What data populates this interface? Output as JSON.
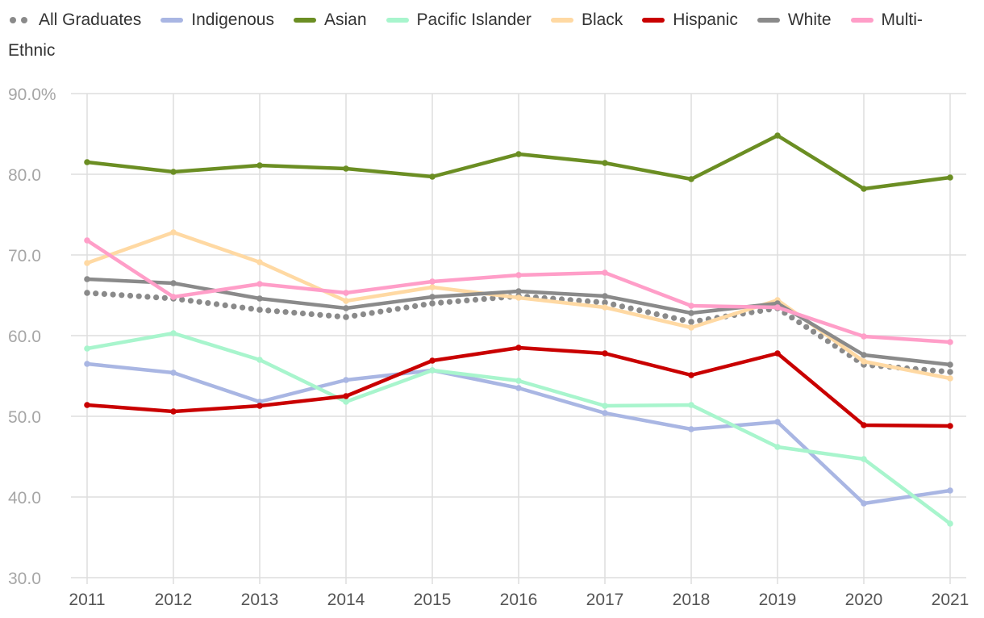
{
  "chart_data": {
    "type": "line",
    "title": "",
    "xlabel": "",
    "ylabel": "",
    "categories": [
      "2011",
      "2012",
      "2013",
      "2014",
      "2015",
      "2016",
      "2017",
      "2018",
      "2019",
      "2020",
      "2021"
    ],
    "ylim": [
      30,
      90
    ],
    "y_ticks": [
      "90.0%",
      "80.0",
      "70.0",
      "60.0",
      "50.0",
      "40.0",
      "30.0"
    ],
    "y_tick_values": [
      90,
      80,
      70,
      60,
      50,
      40,
      30
    ],
    "legend_position": "top",
    "legend_wrap_text": "Ethnic",
    "series": [
      {
        "name": "All Graduates",
        "color": "#8a8a8a",
        "style": "dotted",
        "values": [
          65.3,
          64.6,
          63.2,
          62.3,
          64.0,
          64.9,
          64.1,
          61.7,
          63.4,
          56.4,
          55.5
        ]
      },
      {
        "name": "Indigenous",
        "color": "#a9b6e3",
        "style": "solid",
        "values": [
          56.5,
          55.4,
          51.8,
          54.5,
          55.7,
          53.5,
          50.4,
          48.4,
          49.3,
          39.2,
          40.8
        ]
      },
      {
        "name": "Asian",
        "color": "#6b8e23",
        "style": "solid",
        "values": [
          81.5,
          80.3,
          81.1,
          80.7,
          79.7,
          82.5,
          81.4,
          79.4,
          84.8,
          78.2,
          79.6
        ]
      },
      {
        "name": "Pacific Islander",
        "color": "#a8f5cd",
        "style": "solid",
        "values": [
          58.4,
          60.3,
          57.0,
          51.8,
          55.7,
          54.4,
          51.3,
          51.4,
          46.2,
          44.7,
          36.7
        ]
      },
      {
        "name": "Black",
        "color": "#ffd9a3",
        "style": "solid",
        "values": [
          69.0,
          72.8,
          69.1,
          64.3,
          66.0,
          64.7,
          63.5,
          61.0,
          64.4,
          56.8,
          54.7
        ]
      },
      {
        "name": "Hispanic",
        "color": "#c90000",
        "style": "solid",
        "values": [
          51.4,
          50.6,
          51.3,
          52.5,
          56.9,
          58.5,
          57.8,
          55.1,
          57.8,
          48.9,
          48.8
        ]
      },
      {
        "name": "White",
        "color": "#8a8a8a",
        "style": "solid",
        "values": [
          67.0,
          66.5,
          64.6,
          63.4,
          64.8,
          65.5,
          64.9,
          62.8,
          64.0,
          57.6,
          56.4
        ]
      },
      {
        "name": "Multi-",
        "color": "#ff9ec8",
        "style": "solid",
        "values": [
          71.8,
          64.8,
          66.4,
          65.3,
          66.7,
          67.5,
          67.8,
          63.7,
          63.5,
          59.9,
          59.2
        ]
      }
    ]
  }
}
